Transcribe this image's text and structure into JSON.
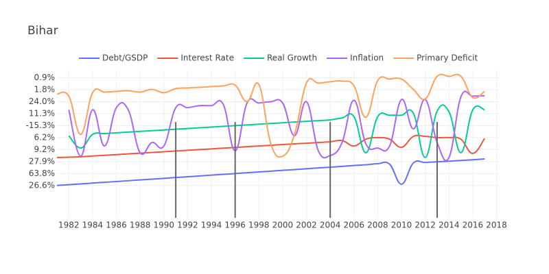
{
  "chart_data": {
    "type": "line",
    "title": "Bihar",
    "x": [
      1981,
      1982,
      1983,
      1984,
      1985,
      1986,
      1987,
      1988,
      1989,
      1990,
      1991,
      1992,
      1993,
      1994,
      1995,
      1996,
      1997,
      1998,
      1999,
      2000,
      2001,
      2002,
      2003,
      2004,
      2005,
      2006,
      2007,
      2008,
      2009,
      2010,
      2011,
      2012,
      2013,
      2014,
      2015,
      2016,
      2017
    ],
    "series": [
      {
        "name": "Debt/GSDP",
        "color": "#636efa",
        "values": [
          0,
          0.07,
          0.13,
          0.2,
          0.27,
          0.33,
          0.4,
          0.47,
          0.53,
          0.6,
          0.67,
          0.73,
          0.8,
          0.87,
          0.93,
          1.0,
          1.07,
          1.13,
          1.2,
          1.27,
          1.33,
          1.4,
          1.47,
          1.53,
          1.6,
          1.67,
          1.73,
          1.82,
          1.78,
          0.11,
          1.88,
          1.92,
          1.98,
          2.03,
          2.09,
          2.15,
          2.22
        ]
      },
      {
        "name": "Interest Rate",
        "color": "#EF553B",
        "values": [
          2.34,
          2.36,
          2.4,
          2.46,
          2.52,
          2.58,
          2.64,
          2.7,
          2.76,
          2.82,
          2.88,
          2.94,
          3.0,
          3.06,
          3.12,
          3.18,
          3.24,
          3.3,
          3.36,
          3.42,
          3.48,
          3.53,
          3.59,
          3.65,
          3.76,
          3.3,
          3.87,
          4.0,
          3.87,
          3.19,
          4.1,
          4.1,
          4.0,
          4.0,
          3.87,
          2.68,
          3.93
        ]
      },
      {
        "name": "Real Growth",
        "color": "#00cc96",
        "values": [
          null,
          4.16,
          3.13,
          4.27,
          4.33,
          4.4,
          4.46,
          4.52,
          4.58,
          4.64,
          4.7,
          4.76,
          4.82,
          4.88,
          4.94,
          5.0,
          5.06,
          5.12,
          5.18,
          5.24,
          5.3,
          5.36,
          5.42,
          5.48,
          5.64,
          5.75,
          2.74,
          5.75,
          5.87,
          5.87,
          6.04,
          2.34,
          6.21,
          6.15,
          2.74,
          6.32,
          6.32
        ]
      },
      {
        "name": "Inflation",
        "color": "#ab63fa",
        "values": [
          null,
          6.32,
          2.45,
          6.32,
          3.3,
          6.5,
          6.32,
          2.74,
          3.59,
          3.3,
          6.5,
          6.5,
          6.67,
          6.67,
          6.78,
          2.9,
          6.89,
          6.89,
          7.0,
          6.89,
          4.16,
          7.0,
          2.9,
          2.5,
          3.59,
          7.12,
          3.48,
          3.13,
          3.3,
          7.18,
          4.73,
          7.18,
          3.59,
          2.34,
          7.4,
          7.46,
          7.5
        ]
      },
      {
        "name": "Primary Deficit",
        "color": "#FFA15A",
        "values": [
          7.63,
          7.46,
          4.27,
          7.75,
          7.8,
          7.86,
          7.92,
          7.8,
          8.03,
          7.75,
          8.09,
          8.15,
          8.2,
          8.26,
          8.32,
          8.38,
          7.0,
          8.43,
          3.48,
          2.45,
          4.27,
          8.55,
          8.55,
          8.66,
          8.72,
          8.32,
          5.7,
          8.77,
          8.89,
          8.89,
          8.03,
          7.24,
          9.12,
          9.12,
          9.12,
          7.35,
          7.86
        ]
      }
    ],
    "xlim": [
      1981,
      2018.2
    ],
    "xticks": [
      1982,
      1984,
      1986,
      1988,
      1990,
      1992,
      1994,
      1996,
      1998,
      2000,
      2002,
      2004,
      2006,
      2008,
      2010,
      2012,
      2014,
      2016,
      2018
    ],
    "ylim": [
      -2.7,
      9.6
    ],
    "yticks": [
      {
        "value": 0,
        "label": "26.6%"
      },
      {
        "value": 1,
        "label": "63.8%"
      },
      {
        "value": 2,
        "label": "27.9%"
      },
      {
        "value": 3,
        "label": "9.2%"
      },
      {
        "value": 4,
        "label": "6.2%"
      },
      {
        "value": 5,
        "label": "-15.3%"
      },
      {
        "value": 6,
        "label": "11.3%"
      },
      {
        "value": 7,
        "label": "24.0%"
      },
      {
        "value": 8,
        "label": "1.8%"
      },
      {
        "value": 9,
        "label": "0.9%"
      }
    ],
    "vlines": {
      "x": [
        1991,
        1996,
        2004,
        2013
      ],
      "y0": -2.7,
      "y1": 5.3,
      "color": "#666666"
    },
    "grid": true
  }
}
